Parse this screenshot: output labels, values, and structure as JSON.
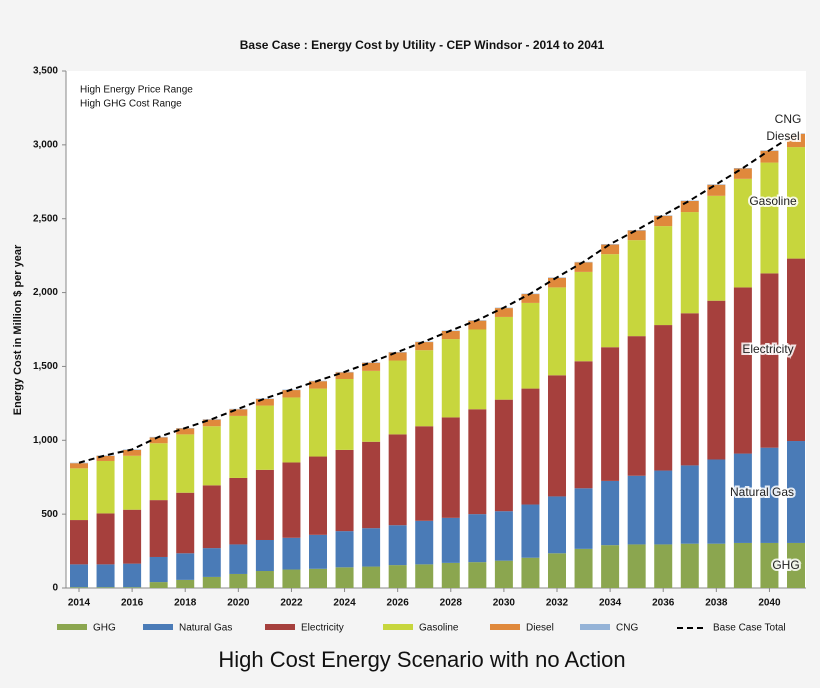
{
  "chart_data": {
    "type": "bar",
    "stacked": true,
    "title": "Base Case : Energy Cost by Utility - CEP Windsor - 2014 to 2041",
    "annotations": [
      "High Energy Price Range",
      "High GHG Cost Range"
    ],
    "y_label": "Energy Cost in Million $ per year",
    "caption": "High Cost Energy Scenario with no Action",
    "categories": [
      "2014",
      null,
      "2016",
      null,
      "2018",
      null,
      "2020",
      null,
      "2022",
      null,
      "2024",
      null,
      "2026",
      null,
      "2028",
      null,
      "2030",
      null,
      "2032",
      null,
      "2034",
      null,
      "2036",
      null,
      "2038",
      null,
      "2040",
      null
    ],
    "series": [
      {
        "name": "GHG",
        "color": "#8ba64f",
        "values": [
          5,
          5,
          5,
          40,
          55,
          75,
          95,
          115,
          125,
          130,
          140,
          145,
          155,
          160,
          170,
          175,
          185,
          205,
          235,
          265,
          290,
          295,
          295,
          300,
          300,
          305,
          305,
          305
        ]
      },
      {
        "name": "Natural Gas",
        "color": "#4a7bb7",
        "values": [
          155,
          155,
          160,
          170,
          180,
          195,
          200,
          210,
          215,
          230,
          245,
          260,
          270,
          295,
          305,
          325,
          335,
          360,
          385,
          410,
          435,
          465,
          500,
          530,
          570,
          605,
          645,
          690
        ]
      },
      {
        "name": "Electricity",
        "color": "#a6403d",
        "values": [
          300,
          345,
          365,
          385,
          410,
          425,
          450,
          475,
          510,
          530,
          550,
          585,
          615,
          640,
          680,
          710,
          755,
          785,
          820,
          860,
          905,
          945,
          985,
          1030,
          1075,
          1125,
          1180,
          1235
        ]
      },
      {
        "name": "Gasoline",
        "color": "#c7d63d",
        "values": [
          350,
          355,
          365,
          385,
          395,
          400,
          420,
          435,
          440,
          460,
          480,
          480,
          500,
          515,
          530,
          540,
          560,
          580,
          595,
          605,
          630,
          650,
          670,
          685,
          710,
          735,
          750,
          755
        ]
      },
      {
        "name": "Diesel",
        "color": "#e0893c",
        "values": [
          35,
          35,
          40,
          40,
          40,
          45,
          45,
          45,
          50,
          50,
          45,
          55,
          55,
          55,
          55,
          60,
          60,
          60,
          65,
          65,
          65,
          65,
          70,
          75,
          75,
          70,
          80,
          90
        ]
      },
      {
        "name": "CNG",
        "color": "#95b3d7",
        "values": [
          3,
          3,
          3,
          3,
          3,
          3,
          3,
          3,
          3,
          3,
          3,
          3,
          3,
          3,
          3,
          3,
          3,
          3,
          3,
          3,
          3,
          3,
          3,
          3,
          3,
          3,
          3,
          3
        ]
      }
    ],
    "total": {
      "name": "Base Case Total",
      "color": "#000000",
      "values": [
        848,
        898,
        938,
        1023,
        1083,
        1143,
        1213,
        1283,
        1343,
        1403,
        1463,
        1528,
        1598,
        1668,
        1743,
        1813,
        1898,
        1993,
        2103,
        2208,
        2328,
        2423,
        2523,
        2623,
        2733,
        2843,
        2963,
        3078
      ]
    },
    "ylim": [
      0,
      3500
    ],
    "yticks": [
      0,
      500,
      {
        "value": 1000,
        "label": "1,000"
      },
      {
        "value": 1500,
        "label": "1,500"
      },
      {
        "value": 2000,
        "label": "2,000"
      },
      {
        "value": 2500,
        "label": "2,500"
      },
      {
        "value": 3000,
        "label": "3,000"
      },
      {
        "value": 3500,
        "label": "3,500"
      }
    ],
    "grid": false
  }
}
